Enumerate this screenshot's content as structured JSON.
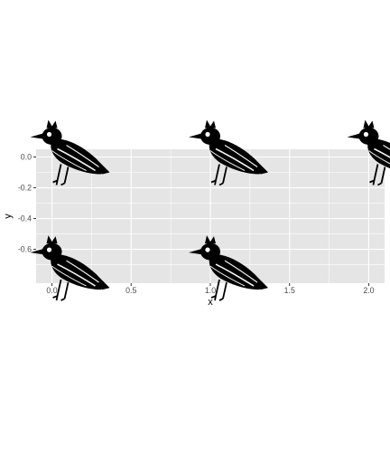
{
  "chart_data": {
    "type": "scatter",
    "marker": "bird-silhouette-icon",
    "xlabel": "x",
    "ylabel": "y",
    "xlim": [
      -0.1,
      2.1
    ],
    "ylim": [
      -0.82,
      0.05
    ],
    "grid": true,
    "x_ticks": [
      {
        "value": 0.0,
        "label": "0.0"
      },
      {
        "value": 0.5,
        "label": "0.5"
      },
      {
        "value": 1.0,
        "label": "1.0"
      },
      {
        "value": 1.5,
        "label": "1.5"
      },
      {
        "value": 2.0,
        "label": "2.0"
      }
    ],
    "y_ticks": [
      {
        "value": 0.0,
        "label": "0.0"
      },
      {
        "value": -0.2,
        "label": "-0.2"
      },
      {
        "value": -0.4,
        "label": "-0.4"
      },
      {
        "value": -0.6,
        "label": "-0.6"
      }
    ],
    "points": [
      {
        "x": 0,
        "y": 0
      },
      {
        "x": 1,
        "y": 0
      },
      {
        "x": 2,
        "y": 0
      },
      {
        "x": 0,
        "y": -0.75
      },
      {
        "x": 1,
        "y": -0.75
      }
    ],
    "colors": {
      "panel": "#e5e5e5",
      "grid": "#ffffff",
      "marker": "#000000",
      "tick_text": "#4d4d4d",
      "tick_mark": "#333333"
    }
  }
}
